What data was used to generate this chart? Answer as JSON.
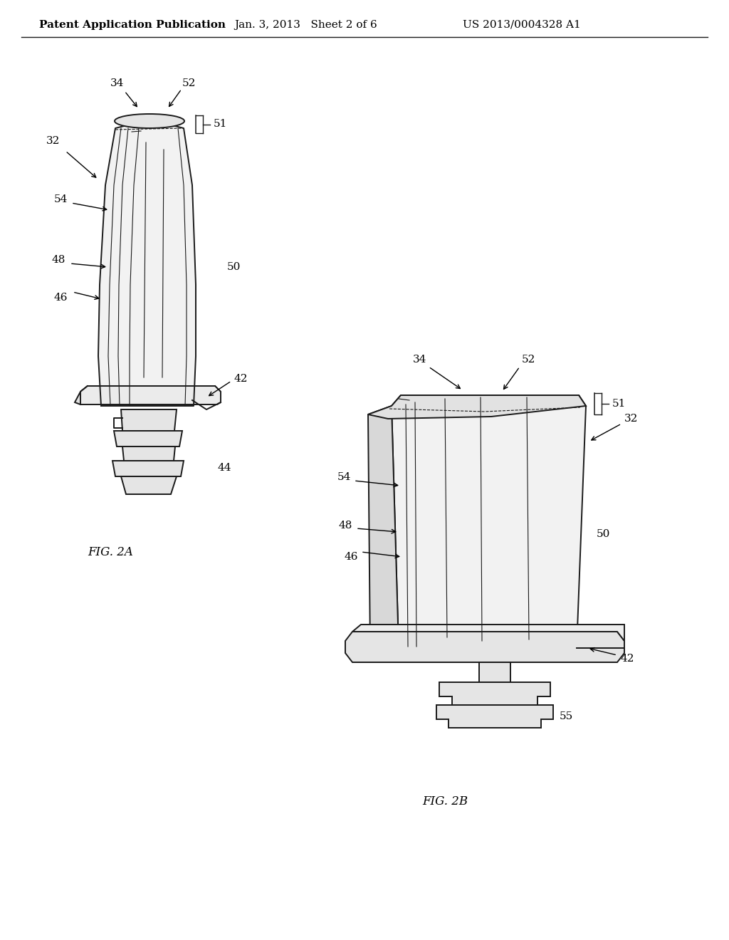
{
  "background_color": "#ffffff",
  "header_left": "Patent Application Publication",
  "header_center": "Jan. 3, 2013   Sheet 2 of 6",
  "header_right": "US 2013/0004328 A1",
  "fig2a_label": "FIG. 2A",
  "fig2b_label": "FIG. 2B",
  "line_color": "#1a1a1a",
  "text_color": "#000000",
  "font_size_header": 11,
  "font_size_label": 12,
  "font_size_ref": 11
}
